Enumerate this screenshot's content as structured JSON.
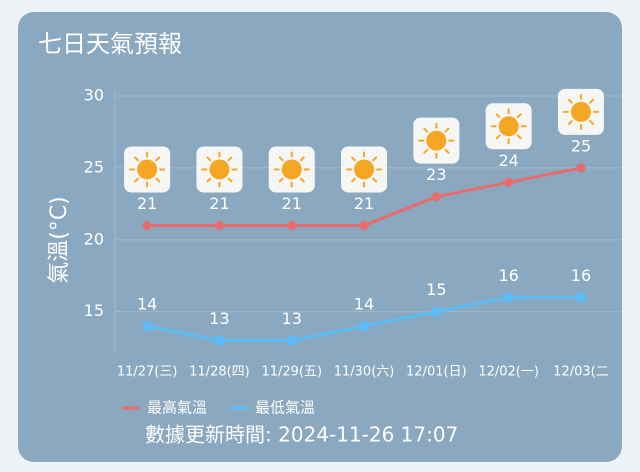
{
  "chart_data": {
    "type": "line",
    "title": "七日天氣預報",
    "y_label": "氣溫(°C)",
    "categories": [
      "11/27(三)",
      "11/28(四)",
      "11/29(五)",
      "11/30(六)",
      "12/01(日)",
      "12/02(一)",
      "12/03(二"
    ],
    "series": [
      {
        "name": "最高氣溫",
        "color": "#e96b6b",
        "values": [
          21,
          21,
          21,
          21,
          23,
          24,
          25
        ]
      },
      {
        "name": "最低氣溫",
        "color": "#5cbdf6",
        "values": [
          14,
          13,
          13,
          14,
          15,
          16,
          16
        ]
      }
    ],
    "ylim": [
      12.2,
      30
    ],
    "yticks": [
      15,
      20,
      25,
      30
    ],
    "grid": true,
    "footer": "數據更新時間: 2024-11-26 17:07"
  }
}
